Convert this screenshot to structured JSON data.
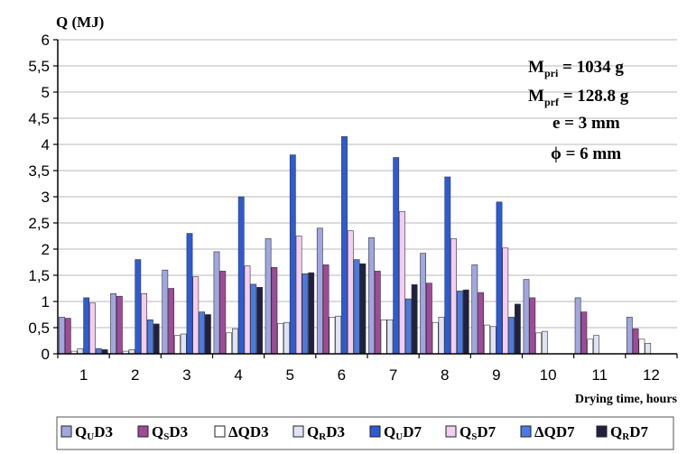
{
  "chart_data": {
    "type": "bar",
    "ylabel": "Q (MJ)",
    "xlabel": "Drying time, hours",
    "ylim": [
      0,
      6
    ],
    "yticks": [
      "0",
      "0,5",
      "1",
      "1,5",
      "2",
      "2,5",
      "3",
      "3,5",
      "4",
      "4,5",
      "5",
      "5,5",
      "6"
    ],
    "categories": [
      "1",
      "2",
      "3",
      "4",
      "5",
      "6",
      "7",
      "8",
      "9",
      "10",
      "11",
      "12"
    ],
    "annotations": [
      {
        "main": "M",
        "sub": "pri",
        "rest": " = 1034 g"
      },
      {
        "main": "M",
        "sub": "prf",
        "rest": " = 128.8 g"
      },
      {
        "main": "e = 3 mm",
        "sub": "",
        "rest": ""
      },
      {
        "main": "ϕ = 6 mm",
        "sub": "",
        "rest": ""
      }
    ],
    "series": [
      {
        "name": "QUD3",
        "label_main": "Q",
        "label_sub": "U",
        "label_rest": "D3",
        "color": "#9fa6e0",
        "marker": "□",
        "values": [
          0.7,
          1.15,
          1.6,
          1.95,
          2.2,
          2.4,
          2.22,
          1.92,
          1.7,
          1.42,
          1.07,
          0.7
        ]
      },
      {
        "name": "QSD3",
        "label_main": "Q",
        "label_sub": "S",
        "label_rest": "D3",
        "color": "#a04a98",
        "marker": "■",
        "values": [
          0.68,
          1.1,
          1.25,
          1.58,
          1.65,
          1.7,
          1.58,
          1.35,
          1.17,
          1.07,
          0.8,
          0.48
        ]
      },
      {
        "name": "ΔQD3",
        "label_main": "ΔQD3",
        "label_sub": "",
        "label_rest": "",
        "color": "#ffffff",
        "marker": "□",
        "values": [
          0.05,
          0.05,
          0.35,
          0.4,
          0.58,
          0.7,
          0.65,
          0.6,
          0.55,
          0.4,
          0.28,
          0.28
        ]
      },
      {
        "name": "QRD3",
        "label_main": "Q",
        "label_sub": "R",
        "label_rest": "D3",
        "color": "#dfe3f4",
        "marker": "□",
        "values": [
          0.1,
          0.08,
          0.38,
          0.48,
          0.6,
          0.72,
          0.65,
          0.7,
          0.52,
          0.43,
          0.35,
          0.2
        ]
      },
      {
        "name": "QUD7",
        "label_main": "Q",
        "label_sub": "U",
        "label_rest": "D7",
        "color": "#2d5bd6",
        "marker": "■",
        "values": [
          1.07,
          1.8,
          2.3,
          3.0,
          3.8,
          4.15,
          3.75,
          3.38,
          2.9,
          0,
          0,
          0
        ]
      },
      {
        "name": "QSD7",
        "label_main": "Q",
        "label_sub": "S",
        "label_rest": "D7",
        "color": "#f4cdf0",
        "marker": "□",
        "values": [
          0.97,
          1.15,
          1.47,
          1.68,
          2.25,
          2.35,
          2.72,
          2.2,
          2.02,
          0,
          0,
          0
        ]
      },
      {
        "name": "ΔQD7",
        "label_main": "ΔQD7",
        "label_sub": "",
        "label_rest": "",
        "color": "#4a7be0",
        "marker": "◭",
        "values": [
          0.1,
          0.65,
          0.8,
          1.33,
          1.53,
          1.8,
          1.05,
          1.2,
          0.7,
          0,
          0,
          0
        ]
      },
      {
        "name": "QRD7",
        "label_main": "Q",
        "label_sub": "R",
        "label_rest": "D7",
        "color": "#22203f",
        "marker": "■",
        "values": [
          0.08,
          0.57,
          0.75,
          1.27,
          1.55,
          1.72,
          1.32,
          1.22,
          0.95,
          0,
          0,
          0
        ]
      }
    ]
  }
}
